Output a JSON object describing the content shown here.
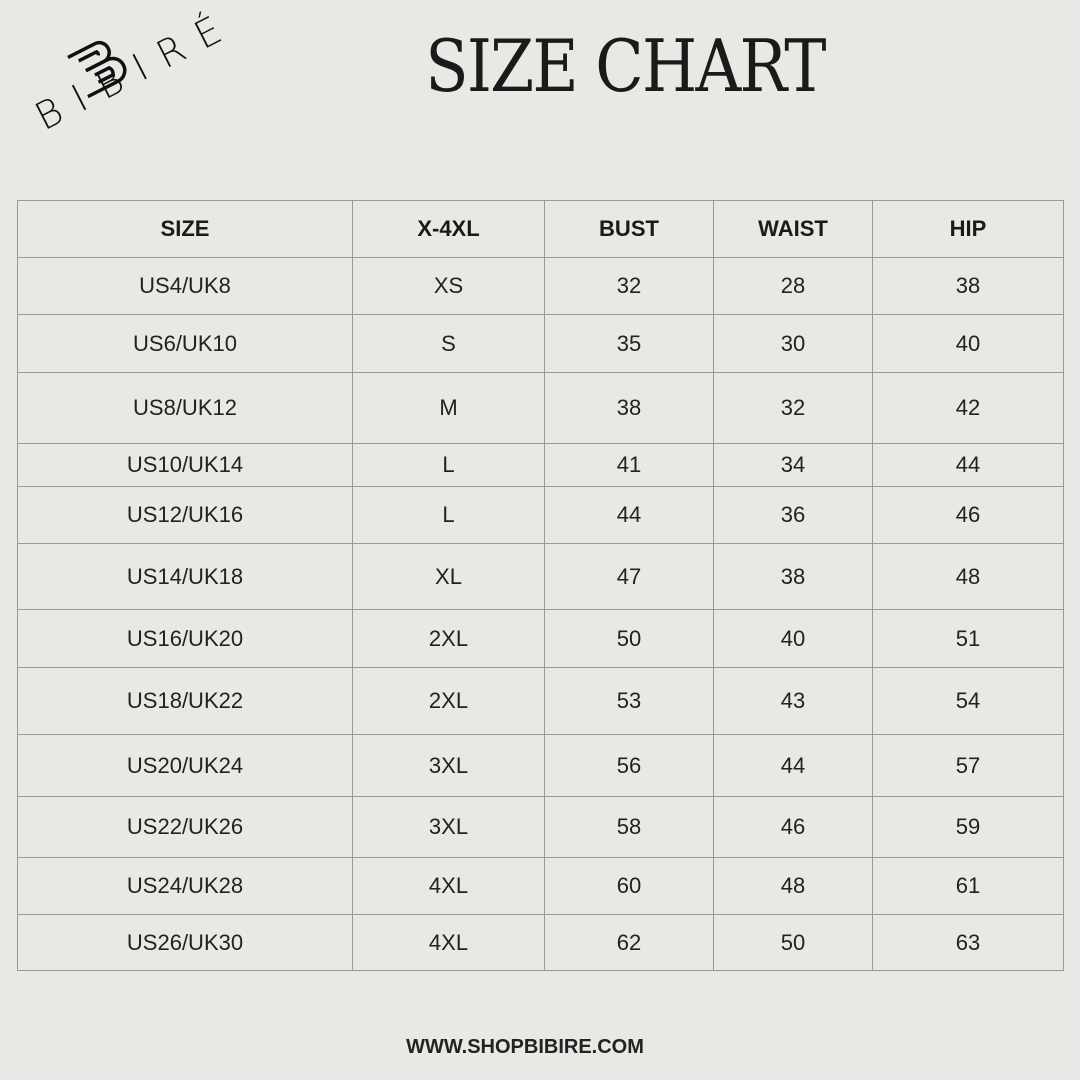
{
  "brand": {
    "name": "BIBIRÉ"
  },
  "title": "SIZE CHART",
  "table": {
    "headers": [
      "SIZE",
      "X-4XL",
      "BUST",
      "WAIST",
      "HIP"
    ],
    "rows": [
      [
        "US4/UK8",
        "XS",
        "32",
        "28",
        "38"
      ],
      [
        "US6/UK10",
        "S",
        "35",
        "30",
        "40"
      ],
      [
        "US8/UK12",
        "M",
        "38",
        "32",
        "42"
      ],
      [
        "US10/UK14",
        "L",
        "41",
        "34",
        "44"
      ],
      [
        "US12/UK16",
        "L",
        "44",
        "36",
        "46"
      ],
      [
        "US14/UK18",
        "XL",
        "47",
        "38",
        "48"
      ],
      [
        "US16/UK20",
        "2XL",
        "50",
        "40",
        "51"
      ],
      [
        "US18/UK22",
        "2XL",
        "53",
        "43",
        "54"
      ],
      [
        "US20/UK24",
        "3XL",
        "56",
        "44",
        "57"
      ],
      [
        "US22/UK26",
        "3XL",
        "58",
        "46",
        "59"
      ],
      [
        "US24/UK28",
        "4XL",
        "60",
        "48",
        "61"
      ],
      [
        "US26/UK30",
        "4XL",
        "62",
        "50",
        "63"
      ]
    ]
  },
  "footer": "WWW.SHOPBIBIRE.COM",
  "colors": {
    "background": "#eae8e4",
    "border": "#9a9a9a",
    "text": "#1a1a1a"
  }
}
